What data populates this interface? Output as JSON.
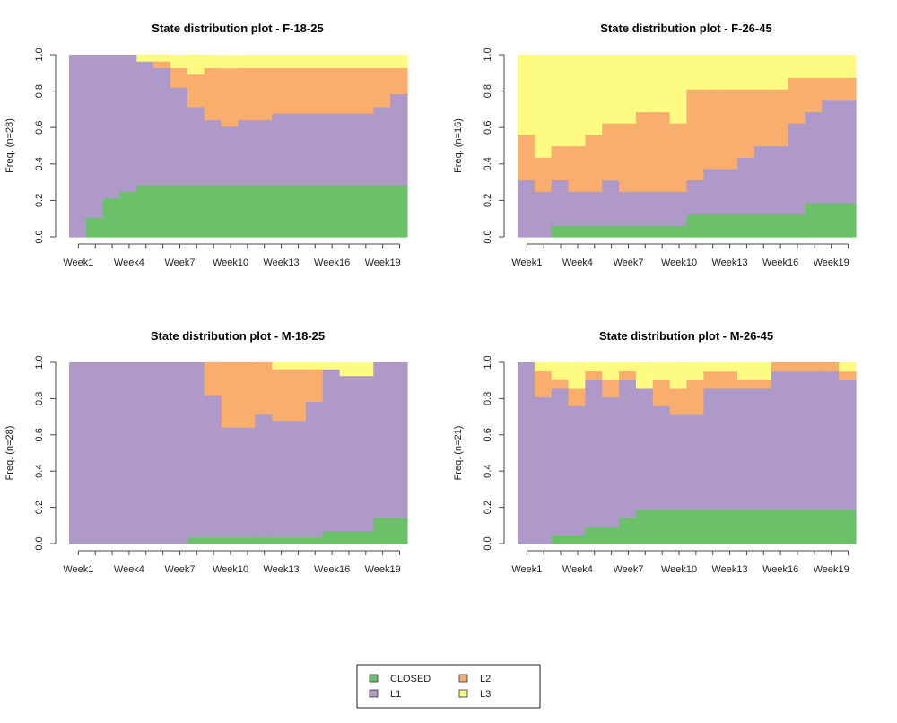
{
  "chart_data": {
    "type": "area",
    "subtype": "state-distribution-stacked",
    "states": [
      {
        "name": "CLOSED",
        "color": "#6cc06a"
      },
      {
        "name": "L1",
        "color": "#af99c9"
      },
      {
        "name": "L2",
        "color": "#f9ae6d"
      },
      {
        "name": "L3",
        "color": "#fdfb82"
      }
    ],
    "categories": [
      "Week1",
      "Week2",
      "Week3",
      "Week4",
      "Week5",
      "Week6",
      "Week7",
      "Week8",
      "Week9",
      "Week10",
      "Week11",
      "Week12",
      "Week13",
      "Week14",
      "Week15",
      "Week16",
      "Week17",
      "Week18",
      "Week19",
      "Week20"
    ],
    "x_tick_labels": [
      "Week1",
      "Week4",
      "Week7",
      "Week10",
      "Week13",
      "Week16",
      "Week19"
    ],
    "y_ticks": [
      "0.0",
      "0.2",
      "0.4",
      "0.6",
      "0.8",
      "1.0"
    ],
    "ylim": [
      0,
      1
    ],
    "grid": false,
    "legend": {
      "placement": "bottom-center",
      "entries": [
        "CLOSED",
        "L2",
        "L1",
        "L3"
      ]
    },
    "panels": [
      {
        "title": "State distribution plot -  F-18-25",
        "ylabel": "Freq. (n=28)",
        "n": 28,
        "series": [
          {
            "name": "CLOSED",
            "values": [
              0.0,
              0.107,
              0.214,
              0.25,
              0.286,
              0.286,
              0.286,
              0.286,
              0.286,
              0.286,
              0.286,
              0.286,
              0.286,
              0.286,
              0.286,
              0.286,
              0.286,
              0.286,
              0.286,
              0.286
            ]
          },
          {
            "name": "L1",
            "values": [
              1.0,
              0.893,
              0.786,
              0.75,
              0.679,
              0.643,
              0.536,
              0.429,
              0.357,
              0.321,
              0.357,
              0.357,
              0.393,
              0.393,
              0.393,
              0.393,
              0.393,
              0.393,
              0.429,
              0.5
            ]
          },
          {
            "name": "L2",
            "values": [
              0.0,
              0.0,
              0.0,
              0.0,
              0.0,
              0.036,
              0.107,
              0.179,
              0.286,
              0.321,
              0.286,
              0.286,
              0.25,
              0.25,
              0.25,
              0.25,
              0.25,
              0.25,
              0.214,
              0.143
            ]
          },
          {
            "name": "L3",
            "values": [
              0.0,
              0.0,
              0.0,
              0.0,
              0.036,
              0.036,
              0.071,
              0.107,
              0.071,
              0.071,
              0.071,
              0.071,
              0.071,
              0.071,
              0.071,
              0.071,
              0.071,
              0.071,
              0.071,
              0.071
            ]
          }
        ]
      },
      {
        "title": "State distribution plot -  F-26-45",
        "ylabel": "Freq. (n=16)",
        "n": 16,
        "series": [
          {
            "name": "CLOSED",
            "values": [
              0.0,
              0.0,
              0.0625,
              0.0625,
              0.0625,
              0.0625,
              0.0625,
              0.0625,
              0.0625,
              0.0625,
              0.125,
              0.125,
              0.125,
              0.125,
              0.125,
              0.125,
              0.125,
              0.1875,
              0.1875,
              0.1875
            ]
          },
          {
            "name": "L1",
            "values": [
              0.3125,
              0.25,
              0.25,
              0.1875,
              0.1875,
              0.25,
              0.1875,
              0.1875,
              0.1875,
              0.1875,
              0.1875,
              0.25,
              0.25,
              0.3125,
              0.375,
              0.375,
              0.5,
              0.5,
              0.5625,
              0.5625
            ]
          },
          {
            "name": "L2",
            "values": [
              0.25,
              0.1875,
              0.1875,
              0.25,
              0.3125,
              0.3125,
              0.375,
              0.4375,
              0.4375,
              0.375,
              0.5,
              0.4375,
              0.4375,
              0.375,
              0.3125,
              0.3125,
              0.25,
              0.1875,
              0.125,
              0.125
            ]
          },
          {
            "name": "L3",
            "values": [
              0.4375,
              0.5625,
              0.5,
              0.5,
              0.4375,
              0.375,
              0.375,
              0.3125,
              0.3125,
              0.375,
              0.1875,
              0.1875,
              0.1875,
              0.1875,
              0.1875,
              0.1875,
              0.125,
              0.125,
              0.125,
              0.125
            ]
          }
        ]
      },
      {
        "title": "State distribution plot -  M-18-25",
        "ylabel": "Freq. (n=28)",
        "n": 28,
        "series": [
          {
            "name": "CLOSED",
            "values": [
              0.0,
              0.0,
              0.0,
              0.0,
              0.0,
              0.0,
              0.0,
              0.036,
              0.036,
              0.036,
              0.036,
              0.036,
              0.036,
              0.036,
              0.036,
              0.071,
              0.071,
              0.071,
              0.143,
              0.143
            ]
          },
          {
            "name": "L1",
            "values": [
              1.0,
              1.0,
              1.0,
              1.0,
              1.0,
              1.0,
              1.0,
              0.964,
              0.786,
              0.607,
              0.607,
              0.679,
              0.643,
              0.643,
              0.75,
              0.893,
              0.857,
              0.857,
              0.857,
              0.857
            ]
          },
          {
            "name": "L2",
            "values": [
              0.0,
              0.0,
              0.0,
              0.0,
              0.0,
              0.0,
              0.0,
              0.0,
              0.179,
              0.357,
              0.357,
              0.286,
              0.286,
              0.286,
              0.179,
              0.0,
              0.0,
              0.0,
              0.0,
              0.0
            ]
          },
          {
            "name": "L3",
            "values": [
              0.0,
              0.0,
              0.0,
              0.0,
              0.0,
              0.0,
              0.0,
              0.0,
              0.0,
              0.0,
              0.0,
              0.0,
              0.036,
              0.036,
              0.036,
              0.036,
              0.071,
              0.071,
              0.0,
              0.0
            ]
          }
        ]
      },
      {
        "title": "State distribution plot -  M-26-45",
        "ylabel": "Freq. (n=21)",
        "n": 21,
        "series": [
          {
            "name": "CLOSED",
            "values": [
              0.0,
              0.0,
              0.048,
              0.048,
              0.095,
              0.095,
              0.143,
              0.19,
              0.19,
              0.19,
              0.19,
              0.19,
              0.19,
              0.19,
              0.19,
              0.19,
              0.19,
              0.19,
              0.19,
              0.19
            ]
          },
          {
            "name": "L1",
            "values": [
              1.0,
              0.81,
              0.81,
              0.714,
              0.81,
              0.714,
              0.762,
              0.667,
              0.571,
              0.524,
              0.524,
              0.667,
              0.667,
              0.667,
              0.667,
              0.762,
              0.762,
              0.762,
              0.762,
              0.714
            ]
          },
          {
            "name": "L2",
            "values": [
              0.0,
              0.143,
              0.048,
              0.095,
              0.048,
              0.095,
              0.048,
              0.0,
              0.143,
              0.143,
              0.19,
              0.095,
              0.095,
              0.048,
              0.048,
              0.048,
              0.048,
              0.048,
              0.048,
              0.048
            ]
          },
          {
            "name": "L3",
            "values": [
              0.0,
              0.048,
              0.095,
              0.143,
              0.048,
              0.095,
              0.048,
              0.143,
              0.095,
              0.143,
              0.095,
              0.048,
              0.048,
              0.095,
              0.095,
              0.0,
              0.0,
              0.0,
              0.0,
              0.048
            ]
          }
        ]
      }
    ]
  }
}
